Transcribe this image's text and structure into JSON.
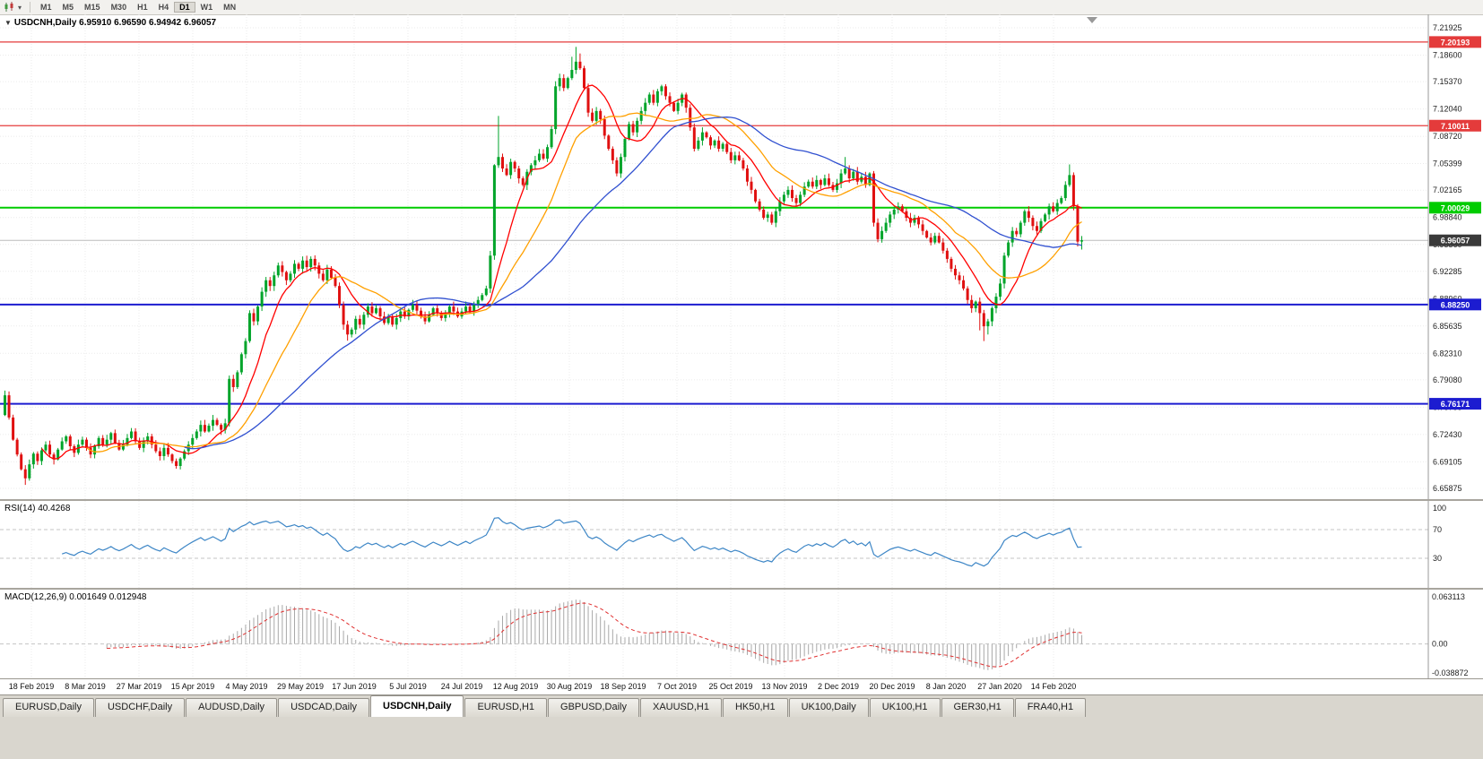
{
  "toolbar": {
    "periods": [
      "M1",
      "M5",
      "M15",
      "M30",
      "H1",
      "H4",
      "D1",
      "W1",
      "MN"
    ],
    "active_period": "D1"
  },
  "chart_data": {
    "type": "candlestick",
    "title": "USDCNH,Daily",
    "ohlc_display": "6.95910 6.96590 6.94942 6.96057",
    "candle_up_color": "#00a42a",
    "candle_down_color": "#e01010",
    "y_labels": [
      "7.21925",
      "7.18600",
      "7.15370",
      "7.12040",
      "7.08720",
      "7.05399",
      "7.02165",
      "6.98840",
      "6.95560",
      "6.92285",
      "6.88960",
      "6.85635",
      "6.82310",
      "6.79080",
      "6.75755",
      "6.72430",
      "6.69105",
      "6.65875"
    ],
    "x_labels": [
      "18 Feb 2019",
      "8 Mar 2019",
      "27 Mar 2019",
      "15 Apr 2019",
      "4 May 2019",
      "29 May 2019",
      "17 Jun 2019",
      "5 Jul 2019",
      "24 Jul 2019",
      "12 Aug 2019",
      "30 Aug 2019",
      "18 Sep 2019",
      "7 Oct 2019",
      "25 Oct 2019",
      "13 Nov 2019",
      "2 Dec 2019",
      "20 Dec 2019",
      "8 Jan 2020",
      "27 Jan 2020",
      "14 Feb 2020"
    ],
    "levels": [
      {
        "label": "7.20193",
        "price": 7.20193,
        "color": "#e43b3b",
        "width": 1.3
      },
      {
        "label": "7.10011",
        "price": 7.10011,
        "color": "#e43b3b",
        "width": 1.3
      },
      {
        "label": "7.00029",
        "price": 7.00029,
        "color": "#00cc00",
        "width": 2
      },
      {
        "label": "6.88250",
        "price": 6.8825,
        "color": "#1c1cd0",
        "width": 2
      },
      {
        "label": "6.76171",
        "price": 6.76171,
        "color": "#1c1cd0",
        "width": 2
      }
    ],
    "current_price": {
      "label": "6.96057",
      "price": 6.96057,
      "color": "#3a3a3a"
    },
    "moving_averages": [
      {
        "period": 10,
        "color": "#ff0000"
      },
      {
        "period": 21,
        "color": "#ffa000"
      },
      {
        "period": 45,
        "color": "#3050d0"
      }
    ],
    "closes": [
      6.772,
      6.745,
      6.718,
      6.7,
      6.682,
      6.671,
      6.688,
      6.701,
      6.692,
      6.705,
      6.712,
      6.7,
      6.694,
      6.706,
      6.716,
      6.722,
      6.71,
      6.702,
      6.712,
      6.718,
      6.708,
      6.7,
      6.71,
      6.72,
      6.712,
      6.718,
      6.726,
      6.714,
      6.706,
      6.712,
      6.72,
      6.728,
      6.716,
      6.708,
      6.716,
      6.722,
      6.712,
      6.704,
      6.698,
      6.708,
      6.7,
      6.692,
      6.686,
      6.695,
      6.704,
      6.712,
      6.72,
      6.728,
      6.736,
      6.728,
      6.735,
      6.742,
      6.736,
      6.73,
      6.738,
      6.792,
      6.782,
      6.8,
      6.822,
      6.838,
      6.872,
      6.862,
      6.88,
      6.898,
      6.912,
      6.905,
      6.918,
      6.93,
      6.922,
      6.912,
      6.92,
      6.932,
      6.926,
      6.936,
      6.928,
      6.938,
      6.93,
      6.92,
      6.912,
      6.925,
      6.915,
      6.905,
      6.882,
      6.858,
      6.846,
      6.852,
      6.865,
      6.858,
      6.87,
      6.88,
      6.872,
      6.878,
      6.868,
      6.86,
      6.868,
      6.858,
      6.866,
      6.874,
      6.868,
      6.876,
      6.882,
      6.875,
      6.868,
      6.862,
      6.87,
      6.878,
      6.872,
      6.866,
      6.872,
      6.88,
      6.874,
      6.868,
      6.874,
      6.88,
      6.874,
      6.882,
      6.888,
      6.894,
      6.902,
      6.942,
      7.052,
      7.062,
      7.048,
      7.04,
      7.056,
      7.048,
      7.036,
      7.028,
      7.044,
      7.052,
      7.058,
      7.066,
      7.06,
      7.074,
      7.096,
      7.148,
      7.158,
      7.146,
      7.158,
      7.168,
      7.178,
      7.17,
      7.146,
      7.116,
      7.106,
      7.118,
      7.108,
      7.088,
      7.072,
      7.058,
      7.042,
      7.062,
      7.084,
      7.102,
      7.092,
      7.106,
      7.118,
      7.128,
      7.138,
      7.128,
      7.142,
      7.148,
      7.136,
      7.128,
      7.118,
      7.128,
      7.138,
      7.122,
      7.098,
      7.072,
      7.082,
      7.092,
      7.086,
      7.076,
      7.082,
      7.072,
      7.078,
      7.068,
      7.058,
      7.064,
      7.058,
      7.048,
      7.032,
      7.022,
      7.008,
      6.998,
      6.988,
      6.992,
      6.982,
      6.996,
      7.008,
      7.016,
      7.022,
      7.012,
      7.006,
      7.016,
      7.026,
      7.032,
      7.026,
      7.034,
      7.028,
      7.036,
      7.028,
      7.022,
      7.03,
      7.042,
      7.048,
      7.036,
      7.044,
      7.032,
      7.038,
      7.028,
      7.042,
      6.982,
      6.962,
      6.972,
      6.982,
      6.992,
      6.998,
      7.002,
      6.996,
      6.988,
      6.982,
      6.988,
      6.98,
      6.972,
      6.964,
      6.958,
      6.966,
      6.958,
      6.948,
      6.938,
      6.926,
      6.918,
      6.912,
      6.902,
      6.888,
      6.878,
      6.886,
      6.872,
      6.856,
      6.862,
      6.878,
      6.892,
      6.908,
      6.942,
      6.958,
      6.972,
      6.968,
      6.982,
      6.996,
      6.988,
      6.978,
      6.972,
      6.984,
      6.992,
      7.002,
      6.996,
      7.006,
      7.012,
      7.028,
      7.04,
      7.002,
      6.959,
      6.96057
    ],
    "overrides": {
      "0": {
        "o": 6.748
      },
      "5": {
        "l": 6.663
      },
      "84": {
        "l": 6.8385
      },
      "121": {
        "h": 7.112
      },
      "139": {
        "h": 7.184
      },
      "140": {
        "h": 7.196
      },
      "141": {
        "h": 7.188
      },
      "206": {
        "h": 7.062
      },
      "239": {
        "l": 6.851
      },
      "240": {
        "l": 6.838
      },
      "241": {
        "l": 6.846
      },
      "261": {
        "h": 7.053
      },
      "264": {
        "o": 6.9591,
        "h": 6.9659,
        "l": 6.94942,
        "c": 6.96057
      }
    },
    "rsi": {
      "title": "RSI(14)",
      "value": "40.4268",
      "period": 14,
      "color": "#3d86c6",
      "axis_labels": [
        "100",
        "70",
        "30"
      ],
      "upper_level": 70,
      "lower_level": 30
    },
    "macd": {
      "title": "MACD(12,26,9)",
      "values": "0.001649 0.012948",
      "fast": 12,
      "slow": 26,
      "signal": 9,
      "hist_color": "#a8a8a8",
      "signal_color": "#e03030",
      "axis_labels": [
        "0.063113",
        "0.00",
        "-0.038872"
      ],
      "scale_max": 0.063113,
      "scale_min": -0.038872
    }
  },
  "tabs": {
    "items": [
      "EURUSD,Daily",
      "USDCHF,Daily",
      "AUDUSD,Daily",
      "USDCAD,Daily",
      "USDCNH,Daily",
      "EURUSD,H1",
      "GBPUSD,Daily",
      "XAUUSD,H1",
      "HK50,H1",
      "UK100,Daily",
      "UK100,H1",
      "GER30,H1",
      "FRA40,H1"
    ],
    "active": "USDCNH,Daily"
  }
}
